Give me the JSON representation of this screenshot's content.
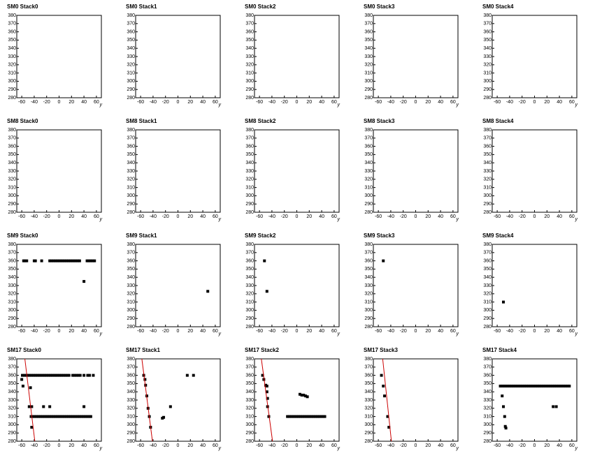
{
  "chart_data": [
    {
      "type": "scatter",
      "title": "SM0 Stack0",
      "xlabel": "y",
      "xlim": [
        -68,
        68
      ],
      "ylim": [
        280,
        380
      ],
      "xticks": [
        -60,
        -40,
        -20,
        0,
        20,
        40,
        60
      ],
      "yticks": [
        280,
        290,
        300,
        310,
        320,
        330,
        340,
        350,
        360,
        370,
        380
      ],
      "series": []
    },
    {
      "type": "scatter",
      "title": "SM0 Stack1",
      "xlabel": "y",
      "xlim": [
        -68,
        68
      ],
      "ylim": [
        280,
        380
      ],
      "xticks": [
        -60,
        -40,
        -20,
        0,
        20,
        40,
        60
      ],
      "yticks": [
        280,
        290,
        300,
        310,
        320,
        330,
        340,
        350,
        360,
        370,
        380
      ],
      "series": []
    },
    {
      "type": "scatter",
      "title": "SM0 Stack2",
      "xlabel": "y",
      "xlim": [
        -68,
        68
      ],
      "ylim": [
        280,
        380
      ],
      "xticks": [
        -60,
        -40,
        -20,
        0,
        20,
        40,
        60
      ],
      "yticks": [
        280,
        290,
        300,
        310,
        320,
        330,
        340,
        350,
        360,
        370,
        380
      ],
      "series": []
    },
    {
      "type": "scatter",
      "title": "SM0 Stack3",
      "xlabel": "y",
      "xlim": [
        -68,
        68
      ],
      "ylim": [
        280,
        380
      ],
      "xticks": [
        -60,
        -40,
        -20,
        0,
        20,
        40,
        60
      ],
      "yticks": [
        280,
        290,
        300,
        310,
        320,
        330,
        340,
        350,
        360,
        370,
        380
      ],
      "series": []
    },
    {
      "type": "scatter",
      "title": "SM0 Stack4",
      "xlabel": "y",
      "xlim": [
        -68,
        68
      ],
      "ylim": [
        280,
        380
      ],
      "xticks": [
        -60,
        -40,
        -20,
        0,
        20,
        40,
        60
      ],
      "yticks": [
        280,
        290,
        300,
        310,
        320,
        330,
        340,
        350,
        360,
        370,
        380
      ],
      "series": []
    },
    {
      "type": "scatter",
      "title": "SM8 Stack0",
      "xlabel": "y",
      "xlim": [
        -68,
        68
      ],
      "ylim": [
        280,
        380
      ],
      "xticks": [
        -60,
        -40,
        -20,
        0,
        20,
        40,
        60
      ],
      "yticks": [
        280,
        290,
        300,
        310,
        320,
        330,
        340,
        350,
        360,
        370,
        380
      ],
      "series": []
    },
    {
      "type": "scatter",
      "title": "SM8 Stack1",
      "xlabel": "y",
      "xlim": [
        -68,
        68
      ],
      "ylim": [
        280,
        380
      ],
      "xticks": [
        -60,
        -40,
        -20,
        0,
        20,
        40,
        60
      ],
      "yticks": [
        280,
        290,
        300,
        310,
        320,
        330,
        340,
        350,
        360,
        370,
        380
      ],
      "series": []
    },
    {
      "type": "scatter",
      "title": "SM8 Stack2",
      "xlabel": "y",
      "xlim": [
        -68,
        68
      ],
      "ylim": [
        280,
        380
      ],
      "xticks": [
        -60,
        -40,
        -20,
        0,
        20,
        40,
        60
      ],
      "yticks": [
        280,
        290,
        300,
        310,
        320,
        330,
        340,
        350,
        360,
        370,
        380
      ],
      "series": []
    },
    {
      "type": "scatter",
      "title": "SM8 Stack3",
      "xlabel": "y",
      "xlim": [
        -68,
        68
      ],
      "ylim": [
        280,
        380
      ],
      "xticks": [
        -60,
        -40,
        -20,
        0,
        20,
        40,
        60
      ],
      "yticks": [
        280,
        290,
        300,
        310,
        320,
        330,
        340,
        350,
        360,
        370,
        380
      ],
      "series": []
    },
    {
      "type": "scatter",
      "title": "SM8 Stack4",
      "xlabel": "y",
      "xlim": [
        -68,
        68
      ],
      "ylim": [
        280,
        380
      ],
      "xticks": [
        -60,
        -40,
        -20,
        0,
        20,
        40,
        60
      ],
      "yticks": [
        280,
        290,
        300,
        310,
        320,
        330,
        340,
        350,
        360,
        370,
        380
      ],
      "series": []
    },
    {
      "type": "scatter",
      "title": "SM9 Stack0",
      "xlabel": "y",
      "xlim": [
        -68,
        68
      ],
      "ylim": [
        280,
        380
      ],
      "xticks": [
        -60,
        -40,
        -20,
        0,
        20,
        40,
        60
      ],
      "yticks": [
        280,
        290,
        300,
        310,
        320,
        330,
        340,
        350,
        360,
        370,
        380
      ],
      "series": [
        {
          "color": "#000000",
          "x": [
            -57,
            -55,
            -52,
            -40,
            -38,
            -28,
            -15,
            -12,
            -9,
            -6,
            -3,
            0,
            3,
            6,
            9,
            12,
            15,
            18,
            21,
            24,
            27,
            30,
            33,
            45,
            48,
            51,
            54,
            57
          ],
          "values": [
            360,
            360,
            360,
            360,
            360,
            360,
            360,
            360,
            360,
            360,
            360,
            360,
            360,
            360,
            360,
            360,
            360,
            360,
            360,
            360,
            360,
            360,
            360,
            360,
            360,
            360,
            360,
            360
          ]
        },
        {
          "color": "#000000",
          "x": [
            40
          ],
          "values": [
            335
          ]
        }
      ]
    },
    {
      "type": "scatter",
      "title": "SM9 Stack1",
      "xlabel": "y",
      "xlim": [
        -68,
        68
      ],
      "ylim": [
        280,
        380
      ],
      "xticks": [
        -60,
        -40,
        -20,
        0,
        20,
        40,
        60
      ],
      "yticks": [
        280,
        290,
        300,
        310,
        320,
        330,
        340,
        350,
        360,
        370,
        380
      ],
      "series": [
        {
          "color": "#000000",
          "x": [
            48
          ],
          "values": [
            323
          ]
        }
      ]
    },
    {
      "type": "scatter",
      "title": "SM9 Stack2",
      "xlabel": "y",
      "xlim": [
        -68,
        68
      ],
      "ylim": [
        280,
        380
      ],
      "xticks": [
        -60,
        -40,
        -20,
        0,
        20,
        40,
        60
      ],
      "yticks": [
        280,
        290,
        300,
        310,
        320,
        330,
        340,
        350,
        360,
        370,
        380
      ],
      "series": [
        {
          "color": "#000000",
          "x": [
            -52,
            -48
          ],
          "values": [
            360,
            323
          ]
        }
      ]
    },
    {
      "type": "scatter",
      "title": "SM9 Stack3",
      "xlabel": "y",
      "xlim": [
        -68,
        68
      ],
      "ylim": [
        280,
        380
      ],
      "xticks": [
        -60,
        -40,
        -20,
        0,
        20,
        40,
        60
      ],
      "yticks": [
        280,
        290,
        300,
        310,
        320,
        330,
        340,
        350,
        360,
        370,
        380
      ],
      "series": [
        {
          "color": "#000000",
          "x": [
            -52
          ],
          "values": [
            360
          ]
        }
      ]
    },
    {
      "type": "scatter",
      "title": "SM9 Stack4",
      "xlabel": "y",
      "xlim": [
        -68,
        68
      ],
      "ylim": [
        280,
        380
      ],
      "xticks": [
        -60,
        -40,
        -20,
        0,
        20,
        40,
        60
      ],
      "yticks": [
        280,
        290,
        300,
        310,
        320,
        330,
        340,
        350,
        360,
        370,
        380
      ],
      "series": [
        {
          "color": "#000000",
          "x": [
            -50
          ],
          "values": [
            310
          ]
        }
      ]
    },
    {
      "type": "scatter",
      "title": "SM17 Stack0",
      "xlabel": "y",
      "xlim": [
        -68,
        68
      ],
      "ylim": [
        280,
        380
      ],
      "xticks": [
        -60,
        -40,
        -20,
        0,
        20,
        40,
        60
      ],
      "yticks": [
        280,
        290,
        300,
        310,
        320,
        330,
        340,
        350,
        360,
        370,
        380
      ],
      "series": [
        {
          "color": "#000000",
          "x": [
            -59,
            -56,
            -53,
            -50,
            -47,
            -44,
            -41,
            -38,
            -35,
            -32,
            -29,
            -26,
            -23,
            -20,
            -17,
            -14,
            -11,
            -8,
            -5,
            -2,
            1,
            4,
            7,
            10,
            13,
            16,
            22,
            25,
            28,
            31,
            34,
            40,
            46,
            49,
            55
          ],
          "values": [
            360,
            360,
            360,
            360,
            360,
            360,
            360,
            360,
            360,
            360,
            360,
            360,
            360,
            360,
            360,
            360,
            360,
            360,
            360,
            360,
            360,
            360,
            360,
            360,
            360,
            360,
            360,
            360,
            360,
            360,
            360,
            360,
            360,
            360,
            360
          ]
        },
        {
          "color": "#000000",
          "x": [
            -45,
            -42,
            -39,
            -36,
            -33,
            -30,
            -27,
            -24,
            -21,
            -18,
            -15,
            -12,
            -9,
            -6,
            -3,
            0,
            3,
            6,
            9,
            12,
            15,
            18,
            21,
            24,
            27,
            30,
            33,
            36,
            39,
            42,
            45,
            48,
            51
          ],
          "values": [
            310,
            310,
            310,
            310,
            310,
            310,
            310,
            310,
            310,
            310,
            310,
            310,
            310,
            310,
            310,
            310,
            310,
            310,
            310,
            310,
            310,
            310,
            310,
            310,
            310,
            310,
            310,
            310,
            310,
            310,
            310,
            310,
            310
          ]
        },
        {
          "color": "#000000",
          "x": [
            -60,
            -58,
            -46,
            -48,
            -44,
            -25,
            -15,
            40,
            -44
          ],
          "values": [
            355,
            347,
            345,
            322,
            322,
            322,
            322,
            322,
            297
          ]
        },
        {
          "color": "#cc0000",
          "mode": "line",
          "x": [
            -55,
            -39
          ],
          "values": [
            380,
            280
          ]
        }
      ]
    },
    {
      "type": "scatter",
      "title": "SM17 Stack1",
      "xlabel": "y",
      "xlim": [
        -68,
        68
      ],
      "ylim": [
        280,
        380
      ],
      "xticks": [
        -60,
        -40,
        -20,
        0,
        20,
        40,
        60
      ],
      "yticks": [
        280,
        290,
        300,
        310,
        320,
        330,
        340,
        350,
        360,
        370,
        380
      ],
      "series": [
        {
          "color": "#000000",
          "x": [
            -55,
            -53,
            -52,
            -50,
            -48,
            -46,
            -44,
            -25,
            -23,
            -12,
            15,
            25
          ],
          "values": [
            360,
            355,
            348,
            335,
            320,
            310,
            297,
            308,
            309,
            322,
            360,
            360
          ]
        },
        {
          "color": "#cc0000",
          "mode": "line",
          "x": [
            -58,
            -41
          ],
          "values": [
            380,
            280
          ]
        }
      ]
    },
    {
      "type": "scatter",
      "title": "SM17 Stack2",
      "xlabel": "y",
      "xlim": [
        -68,
        68
      ],
      "ylim": [
        280,
        380
      ],
      "xticks": [
        -60,
        -40,
        -20,
        0,
        20,
        40,
        60
      ],
      "yticks": [
        280,
        290,
        300,
        310,
        320,
        330,
        340,
        350,
        360,
        370,
        380
      ],
      "series": [
        {
          "color": "#000000",
          "x": [
            -15,
            -12,
            -9,
            -6,
            -3,
            0,
            3,
            6,
            9,
            12,
            15,
            18,
            21,
            24,
            27,
            30,
            33,
            36,
            39,
            42,
            45
          ],
          "values": [
            310,
            310,
            310,
            310,
            310,
            310,
            310,
            310,
            310,
            310,
            310,
            310,
            310,
            310,
            310,
            310,
            310,
            310,
            310,
            310,
            310
          ]
        },
        {
          "color": "#000000",
          "x": [
            5,
            8,
            11,
            14,
            17
          ],
          "values": [
            337,
            336,
            336,
            335,
            334
          ]
        },
        {
          "color": "#000000",
          "x": [
            -55,
            -53,
            -50,
            -48,
            -48,
            -47,
            -47,
            -45
          ],
          "values": [
            360,
            355,
            348,
            347,
            340,
            332,
            322,
            310
          ]
        },
        {
          "color": "#cc0000",
          "mode": "line",
          "x": [
            -57,
            -39
          ],
          "values": [
            380,
            280
          ]
        }
      ]
    },
    {
      "type": "scatter",
      "title": "SM17 Stack3",
      "xlabel": "y",
      "xlim": [
        -68,
        68
      ],
      "ylim": [
        280,
        380
      ],
      "xticks": [
        -60,
        -40,
        -20,
        0,
        20,
        40,
        60
      ],
      "yticks": [
        280,
        290,
        300,
        310,
        320,
        330,
        340,
        350,
        360,
        370,
        380
      ],
      "series": [
        {
          "color": "#000000",
          "x": [
            -55,
            -52,
            -50,
            -45,
            -43
          ],
          "values": [
            360,
            347,
            335,
            310,
            297
          ]
        },
        {
          "color": "#cc0000",
          "mode": "line",
          "x": [
            -53,
            -39
          ],
          "values": [
            380,
            280
          ]
        }
      ]
    },
    {
      "type": "scatter",
      "title": "SM17 Stack4",
      "xlabel": "y",
      "xlim": [
        -68,
        68
      ],
      "ylim": [
        280,
        380
      ],
      "xticks": [
        -60,
        -40,
        -20,
        0,
        20,
        40,
        60
      ],
      "yticks": [
        280,
        290,
        300,
        310,
        320,
        330,
        340,
        350,
        360,
        370,
        380
      ],
      "series": [
        {
          "color": "#000000",
          "x": [
            -55,
            -52,
            -49,
            -46,
            -43,
            -40,
            -37,
            -34,
            -31,
            -28,
            -25,
            -22,
            -19,
            -16,
            -13,
            -10,
            -7,
            -4,
            -1,
            2,
            5,
            8,
            11,
            14,
            17,
            20,
            23,
            26,
            29,
            32,
            35,
            38,
            41,
            44,
            47,
            50,
            53,
            56
          ],
          "values": [
            347,
            347,
            347,
            347,
            347,
            347,
            347,
            347,
            347,
            347,
            347,
            347,
            347,
            347,
            347,
            347,
            347,
            347,
            347,
            347,
            347,
            347,
            347,
            347,
            347,
            347,
            347,
            347,
            347,
            347,
            347,
            347,
            347,
            347,
            347,
            347,
            347,
            347
          ]
        },
        {
          "color": "#000000",
          "x": [
            -52,
            -50,
            -48,
            -47,
            -46,
            30,
            35
          ],
          "values": [
            335,
            322,
            310,
            298,
            296,
            322,
            322
          ]
        }
      ]
    }
  ]
}
